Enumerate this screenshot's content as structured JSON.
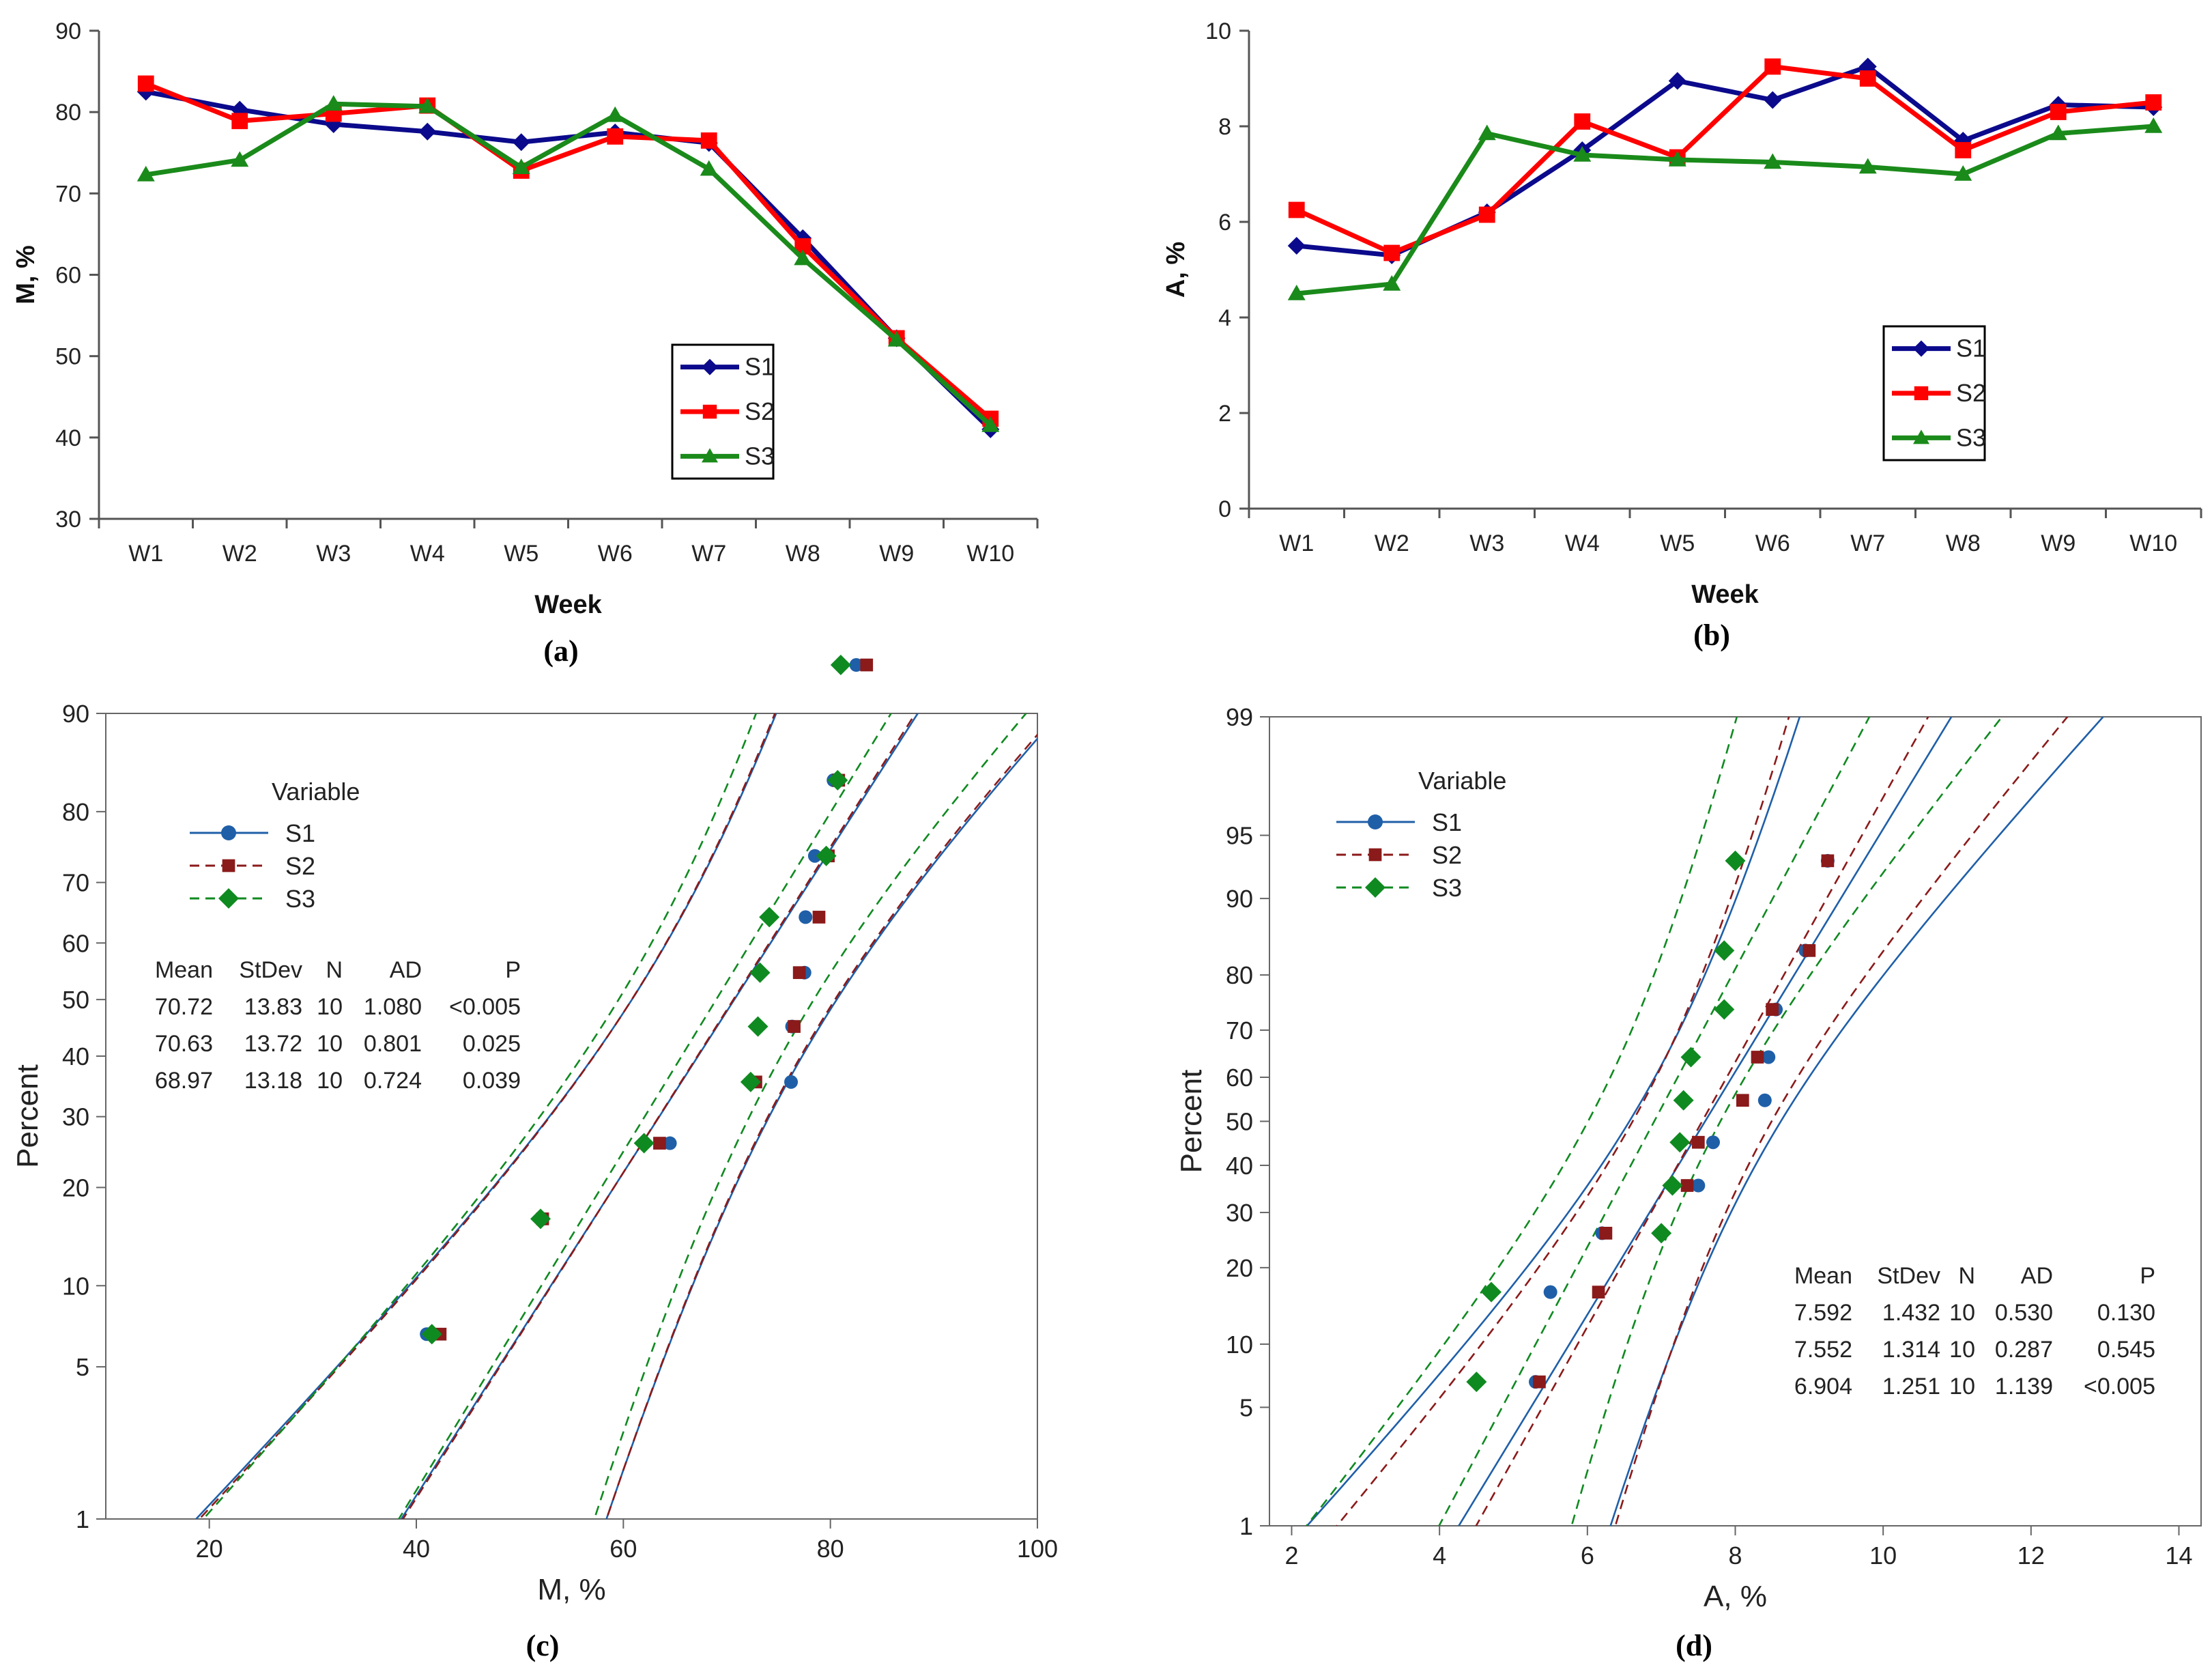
{
  "colors": {
    "S1": "#0b0a8c",
    "S2": "#ff0000",
    "S3": "#1a8a1a",
    "pS1": "#1f5fa8",
    "pS2": "#8b1a1a",
    "pS3": "#0f8a20"
  },
  "chart_data": [
    {
      "id": "a",
      "type": "line",
      "panel_label": "(a)",
      "xlabel": "Week",
      "ylabel": "M, %",
      "categories": [
        "W1",
        "W2",
        "W3",
        "W4",
        "W5",
        "W6",
        "W7",
        "W8",
        "W9",
        "W10"
      ],
      "ylim": [
        30,
        90
      ],
      "yticks": [
        30,
        40,
        50,
        60,
        70,
        80,
        90
      ],
      "legend": "lower-right",
      "series": [
        {
          "name": "S1",
          "marker": "diamond",
          "values": [
            82.5,
            80.3,
            78.5,
            77.6,
            76.3,
            77.5,
            76.2,
            64.5,
            52.2,
            41.0
          ]
        },
        {
          "name": "S2",
          "marker": "square",
          "values": [
            83.5,
            78.9,
            79.8,
            80.8,
            72.8,
            77.0,
            76.5,
            63.5,
            52.2,
            42.3
          ]
        },
        {
          "name": "S3",
          "marker": "triangle",
          "values": [
            72.3,
            74.1,
            81.0,
            80.7,
            73.2,
            79.6,
            73.0,
            62.0,
            52.0,
            41.5
          ]
        }
      ]
    },
    {
      "id": "b",
      "type": "line",
      "panel_label": "(b)",
      "xlabel": "Week",
      "ylabel": "A, %",
      "categories": [
        "W1",
        "W2",
        "W3",
        "W4",
        "W5",
        "W6",
        "W7",
        "W8",
        "W9",
        "W10"
      ],
      "ylim": [
        0,
        10
      ],
      "yticks": [
        0,
        2,
        4,
        6,
        8,
        10
      ],
      "legend": "center-right",
      "series": [
        {
          "name": "S1",
          "marker": "diamond",
          "values": [
            5.5,
            5.3,
            6.2,
            7.5,
            8.95,
            8.55,
            9.25,
            7.7,
            8.45,
            8.4
          ]
        },
        {
          "name": "S2",
          "marker": "square",
          "values": [
            6.25,
            5.35,
            6.15,
            8.1,
            7.35,
            9.25,
            9.0,
            7.5,
            8.3,
            8.5
          ]
        },
        {
          "name": "S3",
          "marker": "triangle",
          "values": [
            4.5,
            4.7,
            7.85,
            7.4,
            7.3,
            7.25,
            7.15,
            7.0,
            7.85,
            8.0
          ]
        }
      ]
    },
    {
      "id": "c",
      "type": "scatter",
      "panel_label": "(c)",
      "xlabel": "M, %",
      "ylabel": "Percent",
      "xlim": [
        10,
        100
      ],
      "xticks": [
        20,
        40,
        60,
        80,
        100
      ],
      "yticks": [
        1,
        5,
        10,
        20,
        30,
        40,
        50,
        60,
        70,
        80,
        90
      ],
      "legend_title": "Variable",
      "stats_header": [
        "Mean",
        "StDev",
        "N",
        "AD",
        "P"
      ],
      "stats": [
        [
          "70.72",
          "13.83",
          "10",
          "1.080",
          "<0.005"
        ],
        [
          "70.63",
          "13.72",
          "10",
          "0.801",
          "0.025"
        ],
        [
          "68.97",
          "13.18",
          "10",
          "0.724",
          "0.039"
        ]
      ],
      "series": [
        {
          "name": "S1",
          "line": "solid",
          "marker": "circle",
          "mean": 70.72,
          "sd": 13.83,
          "points": [
            [
              41.0,
              6.7
            ],
            [
              52.2,
              16.3
            ],
            [
              64.5,
              26.0
            ],
            [
              76.2,
              35.6
            ],
            [
              76.3,
              45.2
            ],
            [
              77.5,
              54.8
            ],
            [
              77.6,
              64.4
            ],
            [
              78.5,
              74.0
            ],
            [
              80.3,
              83.7
            ],
            [
              82.5,
              93.3
            ]
          ]
        },
        {
          "name": "S2",
          "line": "dashed",
          "marker": "square",
          "mean": 70.63,
          "sd": 13.72,
          "points": [
            [
              42.3,
              6.7
            ],
            [
              52.2,
              16.3
            ],
            [
              63.5,
              26.0
            ],
            [
              72.8,
              35.6
            ],
            [
              76.5,
              45.2
            ],
            [
              77.0,
              54.8
            ],
            [
              78.9,
              64.4
            ],
            [
              79.8,
              74.0
            ],
            [
              80.8,
              83.7
            ],
            [
              83.5,
              93.3
            ]
          ]
        },
        {
          "name": "S3",
          "line": "dashed",
          "marker": "diamond",
          "mean": 68.97,
          "sd": 13.18,
          "points": [
            [
              41.5,
              6.7
            ],
            [
              52.0,
              16.3
            ],
            [
              62.0,
              26.0
            ],
            [
              72.3,
              35.6
            ],
            [
              73.0,
              45.2
            ],
            [
              73.2,
              54.8
            ],
            [
              74.1,
              64.4
            ],
            [
              79.6,
              74.0
            ],
            [
              80.7,
              83.7
            ],
            [
              81.0,
              93.3
            ]
          ]
        }
      ]
    },
    {
      "id": "d",
      "type": "scatter",
      "panel_label": "(d)",
      "xlabel": "A, %",
      "ylabel": "Percent",
      "xlim": [
        1.7,
        14.3
      ],
      "xticks": [
        2,
        4,
        6,
        8,
        10,
        12,
        14
      ],
      "yticks": [
        1,
        5,
        10,
        20,
        30,
        40,
        50,
        60,
        70,
        80,
        90,
        95,
        99
      ],
      "legend_title": "Variable",
      "stats_header": [
        "Mean",
        "StDev",
        "N",
        "AD",
        "P"
      ],
      "stats": [
        [
          "7.592",
          "1.432",
          "10",
          "0.530",
          "0.130"
        ],
        [
          "7.552",
          "1.314",
          "10",
          "0.287",
          "0.545"
        ],
        [
          "6.904",
          "1.251",
          "10",
          "1.139",
          "<0.005"
        ]
      ],
      "series": [
        {
          "name": "S1",
          "line": "solid",
          "marker": "circle",
          "mean": 7.592,
          "sd": 1.432,
          "points": [
            [
              5.3,
              6.7
            ],
            [
              5.5,
              16.3
            ],
            [
              6.2,
              26.0
            ],
            [
              7.5,
              35.6
            ],
            [
              7.7,
              45.2
            ],
            [
              8.4,
              54.8
            ],
            [
              8.45,
              64.4
            ],
            [
              8.55,
              74.0
            ],
            [
              8.95,
              83.7
            ],
            [
              9.25,
              93.3
            ]
          ]
        },
        {
          "name": "S2",
          "line": "dashed",
          "marker": "square",
          "mean": 7.552,
          "sd": 1.314,
          "points": [
            [
              5.35,
              6.7
            ],
            [
              6.15,
              16.3
            ],
            [
              6.25,
              26.0
            ],
            [
              7.35,
              35.6
            ],
            [
              7.5,
              45.2
            ],
            [
              8.1,
              54.8
            ],
            [
              8.3,
              64.4
            ],
            [
              8.5,
              74.0
            ],
            [
              9.0,
              83.7
            ],
            [
              9.25,
              93.3
            ]
          ]
        },
        {
          "name": "S3",
          "line": "dashed",
          "marker": "diamond",
          "mean": 6.904,
          "sd": 1.251,
          "points": [
            [
              4.5,
              6.7
            ],
            [
              4.7,
              16.3
            ],
            [
              7.0,
              26.0
            ],
            [
              7.15,
              35.6
            ],
            [
              7.25,
              45.2
            ],
            [
              7.3,
              54.8
            ],
            [
              7.4,
              64.4
            ],
            [
              7.85,
              74.0
            ],
            [
              7.85,
              83.7
            ],
            [
              8.0,
              93.3
            ]
          ]
        }
      ]
    }
  ]
}
